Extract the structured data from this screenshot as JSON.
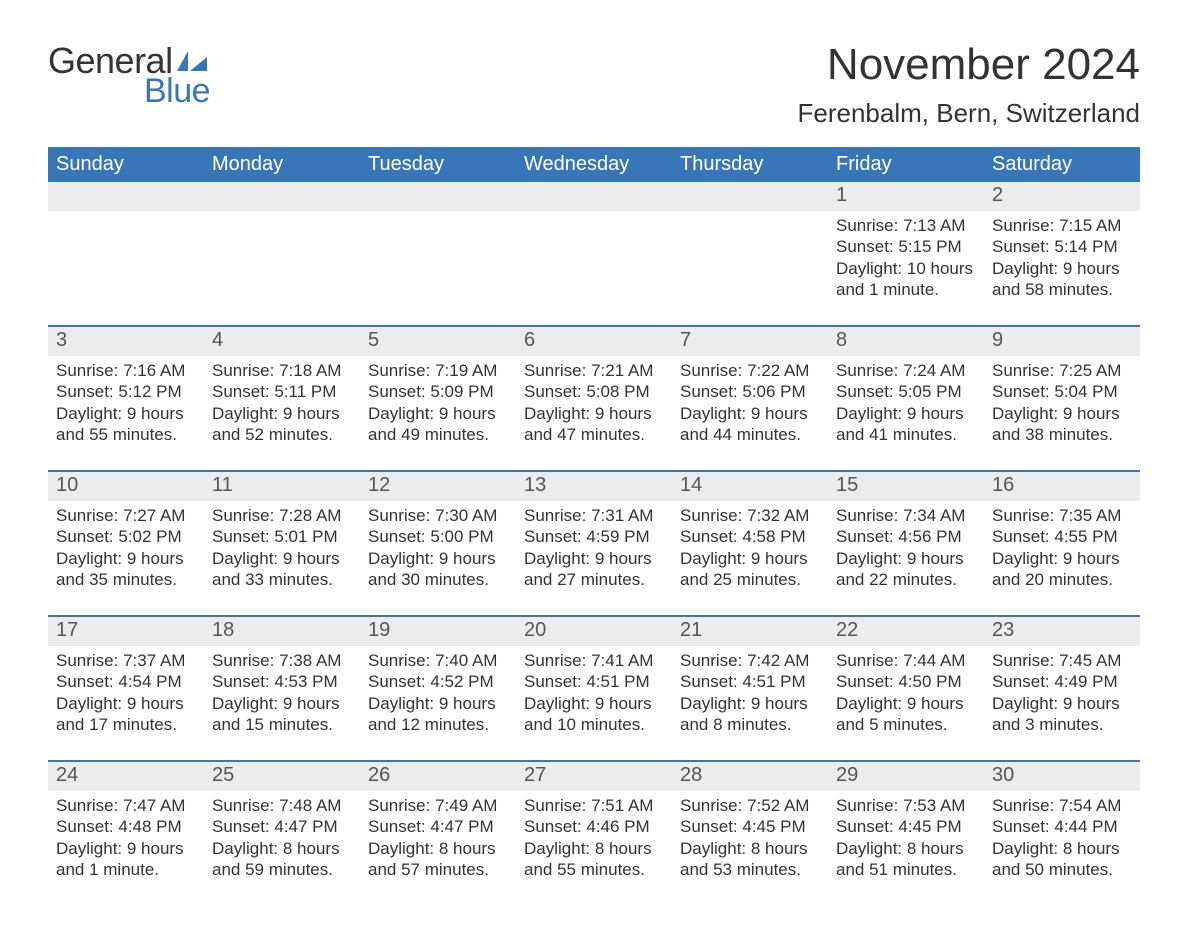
{
  "logo": {
    "word1": "General",
    "word2": "Blue",
    "color_text": "#333333",
    "color_blue": "#3876b8"
  },
  "title": "November 2024",
  "location": "Ferenbalm, Bern, Switzerland",
  "colors": {
    "header_bg": "#3876b8",
    "header_text": "#ffffff",
    "daynum_bg": "#ececec",
    "rule": "#3876b8",
    "body_text": "#333333",
    "background": "#ffffff"
  },
  "fonts": {
    "title_pt": 44,
    "location_pt": 26,
    "weekday_pt": 20,
    "daynum_pt": 20,
    "body_pt": 17
  },
  "weekdays": [
    "Sunday",
    "Monday",
    "Tuesday",
    "Wednesday",
    "Thursday",
    "Friday",
    "Saturday"
  ],
  "weeks": [
    [
      {
        "day": null
      },
      {
        "day": null
      },
      {
        "day": null
      },
      {
        "day": null
      },
      {
        "day": null
      },
      {
        "day": "1",
        "sunrise": "Sunrise: 7:13 AM",
        "sunset": "Sunset: 5:15 PM",
        "daylight1": "Daylight: 10 hours",
        "daylight2": "and 1 minute."
      },
      {
        "day": "2",
        "sunrise": "Sunrise: 7:15 AM",
        "sunset": "Sunset: 5:14 PM",
        "daylight1": "Daylight: 9 hours",
        "daylight2": "and 58 minutes."
      }
    ],
    [
      {
        "day": "3",
        "sunrise": "Sunrise: 7:16 AM",
        "sunset": "Sunset: 5:12 PM",
        "daylight1": "Daylight: 9 hours",
        "daylight2": "and 55 minutes."
      },
      {
        "day": "4",
        "sunrise": "Sunrise: 7:18 AM",
        "sunset": "Sunset: 5:11 PM",
        "daylight1": "Daylight: 9 hours",
        "daylight2": "and 52 minutes."
      },
      {
        "day": "5",
        "sunrise": "Sunrise: 7:19 AM",
        "sunset": "Sunset: 5:09 PM",
        "daylight1": "Daylight: 9 hours",
        "daylight2": "and 49 minutes."
      },
      {
        "day": "6",
        "sunrise": "Sunrise: 7:21 AM",
        "sunset": "Sunset: 5:08 PM",
        "daylight1": "Daylight: 9 hours",
        "daylight2": "and 47 minutes."
      },
      {
        "day": "7",
        "sunrise": "Sunrise: 7:22 AM",
        "sunset": "Sunset: 5:06 PM",
        "daylight1": "Daylight: 9 hours",
        "daylight2": "and 44 minutes."
      },
      {
        "day": "8",
        "sunrise": "Sunrise: 7:24 AM",
        "sunset": "Sunset: 5:05 PM",
        "daylight1": "Daylight: 9 hours",
        "daylight2": "and 41 minutes."
      },
      {
        "day": "9",
        "sunrise": "Sunrise: 7:25 AM",
        "sunset": "Sunset: 5:04 PM",
        "daylight1": "Daylight: 9 hours",
        "daylight2": "and 38 minutes."
      }
    ],
    [
      {
        "day": "10",
        "sunrise": "Sunrise: 7:27 AM",
        "sunset": "Sunset: 5:02 PM",
        "daylight1": "Daylight: 9 hours",
        "daylight2": "and 35 minutes."
      },
      {
        "day": "11",
        "sunrise": "Sunrise: 7:28 AM",
        "sunset": "Sunset: 5:01 PM",
        "daylight1": "Daylight: 9 hours",
        "daylight2": "and 33 minutes."
      },
      {
        "day": "12",
        "sunrise": "Sunrise: 7:30 AM",
        "sunset": "Sunset: 5:00 PM",
        "daylight1": "Daylight: 9 hours",
        "daylight2": "and 30 minutes."
      },
      {
        "day": "13",
        "sunrise": "Sunrise: 7:31 AM",
        "sunset": "Sunset: 4:59 PM",
        "daylight1": "Daylight: 9 hours",
        "daylight2": "and 27 minutes."
      },
      {
        "day": "14",
        "sunrise": "Sunrise: 7:32 AM",
        "sunset": "Sunset: 4:58 PM",
        "daylight1": "Daylight: 9 hours",
        "daylight2": "and 25 minutes."
      },
      {
        "day": "15",
        "sunrise": "Sunrise: 7:34 AM",
        "sunset": "Sunset: 4:56 PM",
        "daylight1": "Daylight: 9 hours",
        "daylight2": "and 22 minutes."
      },
      {
        "day": "16",
        "sunrise": "Sunrise: 7:35 AM",
        "sunset": "Sunset: 4:55 PM",
        "daylight1": "Daylight: 9 hours",
        "daylight2": "and 20 minutes."
      }
    ],
    [
      {
        "day": "17",
        "sunrise": "Sunrise: 7:37 AM",
        "sunset": "Sunset: 4:54 PM",
        "daylight1": "Daylight: 9 hours",
        "daylight2": "and 17 minutes."
      },
      {
        "day": "18",
        "sunrise": "Sunrise: 7:38 AM",
        "sunset": "Sunset: 4:53 PM",
        "daylight1": "Daylight: 9 hours",
        "daylight2": "and 15 minutes."
      },
      {
        "day": "19",
        "sunrise": "Sunrise: 7:40 AM",
        "sunset": "Sunset: 4:52 PM",
        "daylight1": "Daylight: 9 hours",
        "daylight2": "and 12 minutes."
      },
      {
        "day": "20",
        "sunrise": "Sunrise: 7:41 AM",
        "sunset": "Sunset: 4:51 PM",
        "daylight1": "Daylight: 9 hours",
        "daylight2": "and 10 minutes."
      },
      {
        "day": "21",
        "sunrise": "Sunrise: 7:42 AM",
        "sunset": "Sunset: 4:51 PM",
        "daylight1": "Daylight: 9 hours",
        "daylight2": "and 8 minutes."
      },
      {
        "day": "22",
        "sunrise": "Sunrise: 7:44 AM",
        "sunset": "Sunset: 4:50 PM",
        "daylight1": "Daylight: 9 hours",
        "daylight2": "and 5 minutes."
      },
      {
        "day": "23",
        "sunrise": "Sunrise: 7:45 AM",
        "sunset": "Sunset: 4:49 PM",
        "daylight1": "Daylight: 9 hours",
        "daylight2": "and 3 minutes."
      }
    ],
    [
      {
        "day": "24",
        "sunrise": "Sunrise: 7:47 AM",
        "sunset": "Sunset: 4:48 PM",
        "daylight1": "Daylight: 9 hours",
        "daylight2": "and 1 minute."
      },
      {
        "day": "25",
        "sunrise": "Sunrise: 7:48 AM",
        "sunset": "Sunset: 4:47 PM",
        "daylight1": "Daylight: 8 hours",
        "daylight2": "and 59 minutes."
      },
      {
        "day": "26",
        "sunrise": "Sunrise: 7:49 AM",
        "sunset": "Sunset: 4:47 PM",
        "daylight1": "Daylight: 8 hours",
        "daylight2": "and 57 minutes."
      },
      {
        "day": "27",
        "sunrise": "Sunrise: 7:51 AM",
        "sunset": "Sunset: 4:46 PM",
        "daylight1": "Daylight: 8 hours",
        "daylight2": "and 55 minutes."
      },
      {
        "day": "28",
        "sunrise": "Sunrise: 7:52 AM",
        "sunset": "Sunset: 4:45 PM",
        "daylight1": "Daylight: 8 hours",
        "daylight2": "and 53 minutes."
      },
      {
        "day": "29",
        "sunrise": "Sunrise: 7:53 AM",
        "sunset": "Sunset: 4:45 PM",
        "daylight1": "Daylight: 8 hours",
        "daylight2": "and 51 minutes."
      },
      {
        "day": "30",
        "sunrise": "Sunrise: 7:54 AM",
        "sunset": "Sunset: 4:44 PM",
        "daylight1": "Daylight: 8 hours",
        "daylight2": "and 50 minutes."
      }
    ]
  ]
}
